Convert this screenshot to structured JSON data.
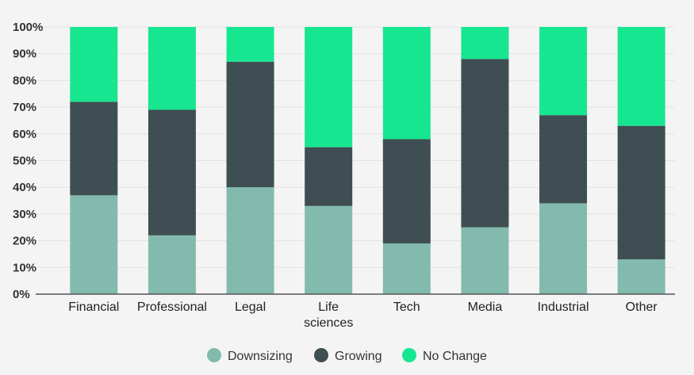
{
  "chart_data": {
    "type": "bar",
    "stacked": true,
    "categories": [
      "Financial",
      "Professional",
      "Legal",
      "Life sciences",
      "Tech",
      "Media",
      "Industrial",
      "Other"
    ],
    "category_lines": [
      [
        "Financial"
      ],
      [
        "Professional"
      ],
      [
        "Legal"
      ],
      [
        "Life",
        "sciences"
      ],
      [
        "Tech"
      ],
      [
        "Media"
      ],
      [
        "Industrial"
      ],
      [
        "Other"
      ]
    ],
    "series": [
      {
        "name": "Downsizing",
        "color": "#82bbad",
        "values": [
          37,
          22,
          40,
          33,
          19,
          25,
          34,
          13
        ]
      },
      {
        "name": "Growing",
        "color": "#3f4e52",
        "values": [
          35,
          47,
          47,
          22,
          39,
          63,
          33,
          50
        ]
      },
      {
        "name": "No Change",
        "color": "#17e690",
        "values": [
          28,
          31,
          13,
          45,
          42,
          12,
          33,
          37
        ]
      }
    ],
    "ylim": [
      0,
      100
    ],
    "yticks": [
      "0%",
      "10%",
      "20%",
      "30%",
      "40%",
      "50%",
      "60%",
      "70%",
      "80%",
      "90%",
      "100%"
    ],
    "grid": true,
    "legend_position": "bottom",
    "title": "",
    "xlabel": "",
    "ylabel": ""
  }
}
